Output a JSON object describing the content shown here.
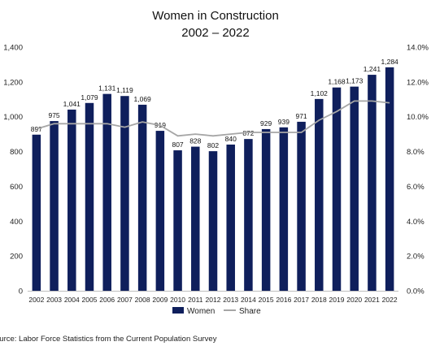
{
  "chart_data": {
    "type": "bar",
    "title": [
      "Women in Construction",
      "2002 – 2022"
    ],
    "categories": [
      "2002",
      "2003",
      "2004",
      "2005",
      "2006",
      "2007",
      "2008",
      "2009",
      "2010",
      "2011",
      "2012",
      "2013",
      "2014",
      "2015",
      "2016",
      "2017",
      "2018",
      "2019",
      "2020",
      "2021",
      "2022"
    ],
    "series": [
      {
        "name": "Women",
        "type": "bar",
        "axis": "left",
        "color": "#0f1f5c",
        "values": [
          897,
          975,
          1041,
          1079,
          1131,
          1119,
          1069,
          919,
          807,
          828,
          802,
          840,
          872,
          929,
          939,
          971,
          1102,
          1168,
          1173,
          1241,
          1284
        ],
        "labels": [
          "897",
          "975",
          "1,041",
          "1,079",
          "1,131",
          "1,119",
          "1,069",
          "919",
          "807",
          "828",
          "802",
          "840",
          "872",
          "929",
          "939",
          "971",
          "1,102",
          "1,168",
          "1,173",
          "1,241",
          "1,284"
        ]
      },
      {
        "name": "Share",
        "type": "line",
        "axis": "right",
        "color": "#a6a6a6",
        "values": [
          9.3,
          9.6,
          9.6,
          9.6,
          9.6,
          9.4,
          9.7,
          9.5,
          8.9,
          9.0,
          8.9,
          9.0,
          9.1,
          9.1,
          9.1,
          9.1,
          9.8,
          10.3,
          10.9,
          10.9,
          10.8
        ]
      }
    ],
    "ylim": [
      0,
      1400
    ],
    "yticks": [
      "0",
      "200",
      "400",
      "600",
      "800",
      "1,000",
      "1,200",
      "1,400"
    ],
    "y2lim": [
      0,
      14
    ],
    "y2ticks": [
      "0.0%",
      "2.0%",
      "4.0%",
      "6.0%",
      "8.0%",
      "10.0%",
      "12.0%",
      "14.0%"
    ],
    "grid": false,
    "legend": "bottom"
  },
  "source": "ource: Labor Force Statistics from the Current Population Survey"
}
